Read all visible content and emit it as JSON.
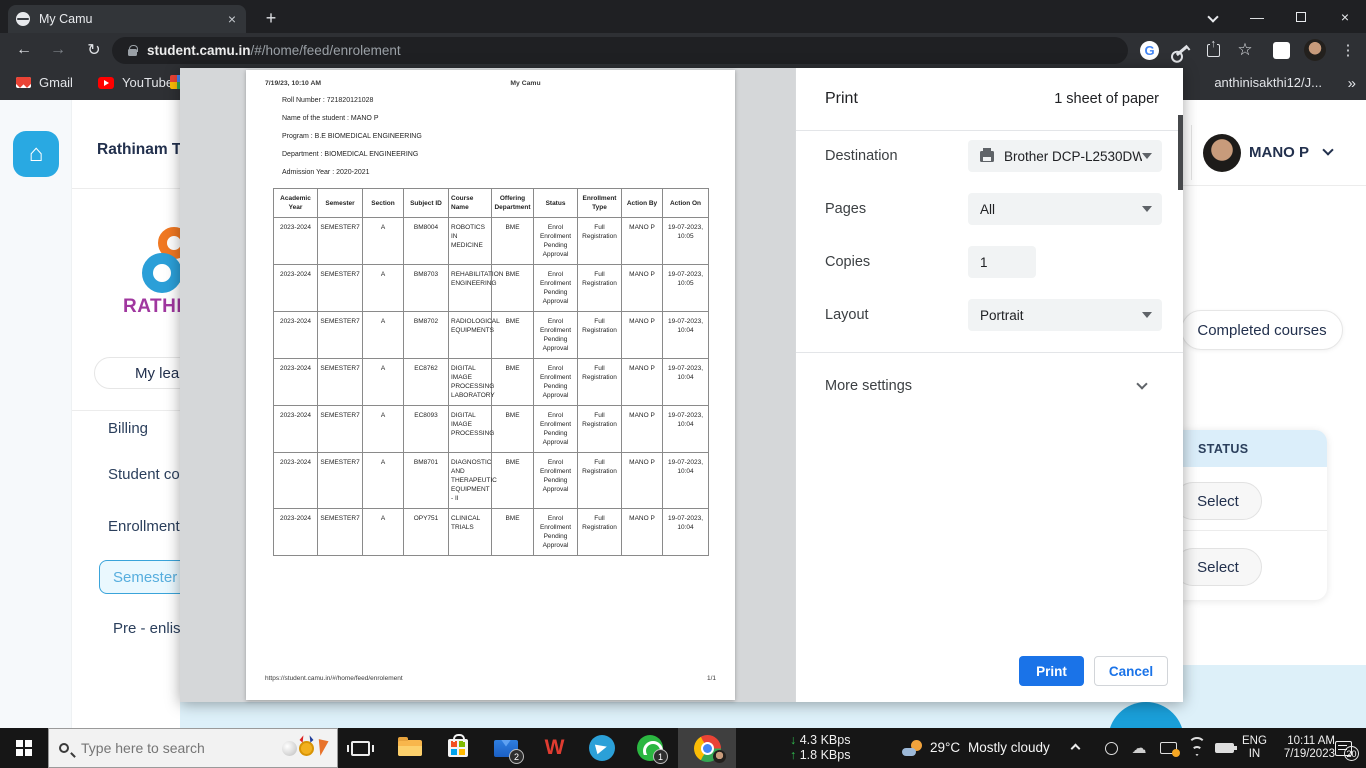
{
  "browser": {
    "tab_title": "My Camu",
    "url_domain": "student.camu.in",
    "url_path": "/#/home/feed/enrolement",
    "bookmark_gmail": "Gmail",
    "bookmark_youtube": "YouTube",
    "bookmark_right": "anthinisakthi12/J...",
    "bookmark_overflow": "»"
  },
  "app": {
    "title": "Rathinam T",
    "logo_text": "RATHI",
    "my_learning": "My lea",
    "nav_billing": "Billing",
    "nav_student_courses": "Student cour",
    "nav_enrollment": "Enrollment",
    "nav_semester": "Semester e",
    "nav_pre_enlist": "Pre - enlistn",
    "user_name": "MANO P",
    "completed_courses": "Completed courses",
    "status_header": "STATUS",
    "select_row1": "Select",
    "select_row2": "Select"
  },
  "print_dialog": {
    "title": "Print",
    "sheets": "1 sheet of paper",
    "destination_label": "Destination",
    "destination_value": "Brother DCP-L2530DW",
    "pages_label": "Pages",
    "pages_value": "All",
    "copies_label": "Copies",
    "copies_value": "1",
    "layout_label": "Layout",
    "layout_value": "Portrait",
    "more_settings": "More settings",
    "print_button": "Print",
    "cancel_button": "Cancel"
  },
  "document": {
    "header_date": "7/19/23, 10:10 AM",
    "header_title": "My Camu",
    "info_lines": [
      "Roll Number : 721820121028",
      "Name of the student : MANO P",
      "Program : B.E BIOMEDICAL ENGINEERING",
      "Department : BIOMEDICAL ENGINEERING",
      "Admission Year : 2020-2021"
    ],
    "table": {
      "headers": [
        "Academic Year",
        "Semester",
        "Section",
        "Subject ID",
        "Course Name",
        "Offering Department",
        "Status",
        "Enrollment Type",
        "Action By",
        "Action On"
      ],
      "rows": [
        [
          "2023-2024",
          "SEMESTER7",
          "A",
          "BM8004",
          "ROBOTICS IN MEDICINE",
          "BME",
          "Enrol Enrollment Pending Approval",
          "Full Registration",
          "MANO P",
          "19-07-2023, 10:05"
        ],
        [
          "2023-2024",
          "SEMESTER7",
          "A",
          "BM8703",
          "REHABILITATION ENGINEERING",
          "BME",
          "Enrol Enrollment Pending Approval",
          "Full Registration",
          "MANO P",
          "19-07-2023, 10:05"
        ],
        [
          "2023-2024",
          "SEMESTER7",
          "A",
          "BM8702",
          "RADIOLOGICAL EQUIPMENTS",
          "BME",
          "Enrol Enrollment Pending Approval",
          "Full Registration",
          "MANO P",
          "19-07-2023, 10:04"
        ],
        [
          "2023-2024",
          "SEMESTER7",
          "A",
          "EC8762",
          "DIGITAL IMAGE PROCESSING LABORATORY",
          "BME",
          "Enrol Enrollment Pending Approval",
          "Full Registration",
          "MANO P",
          "19-07-2023, 10:04"
        ],
        [
          "2023-2024",
          "SEMESTER7",
          "A",
          "EC8093",
          "DIGITAL IMAGE PROCESSING",
          "BME",
          "Enrol Enrollment Pending Approval",
          "Full Registration",
          "MANO P",
          "19-07-2023, 10:04"
        ],
        [
          "2023-2024",
          "SEMESTER7",
          "A",
          "BM8701",
          "DIAGNOSTIC AND THERAPEUTIC EQUIPMENT - II",
          "BME",
          "Enrol Enrollment Pending Approval",
          "Full Registration",
          "MANO P",
          "19-07-2023, 10:04"
        ],
        [
          "2023-2024",
          "SEMESTER7",
          "A",
          "OPY751",
          "CLINICAL TRIALS",
          "BME",
          "Enrol Enrollment Pending Approval",
          "Full Registration",
          "MANO P",
          "19-07-2023, 10:04"
        ]
      ]
    },
    "footer_url": "https://student.camu.in/#/home/feed/enrolement",
    "footer_page": "1/1"
  },
  "taskbar": {
    "search_placeholder": "Type here to search",
    "net_down": "4.3 KBps",
    "net_up": "1.8 KBps",
    "temp": "29°C",
    "weather": "Mostly cloudy",
    "lang_top": "ENG",
    "lang_bottom": "IN",
    "time": "10:11 AM",
    "date": "7/19/2023",
    "notif_count": "20",
    "mail_badge": "2",
    "whatsapp_badge": "1"
  },
  "colors": {
    "chrome_accent": "#1a73e8",
    "camu_blue": "#29a9e2",
    "navy_text": "#22304d",
    "status_header_bg": "#dbeefa"
  }
}
